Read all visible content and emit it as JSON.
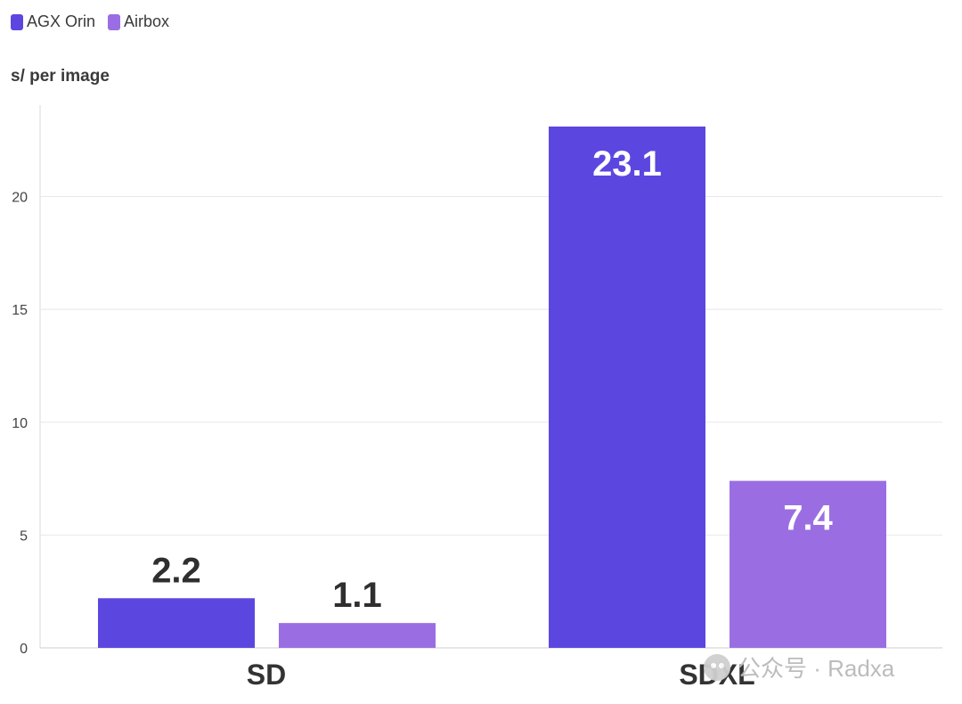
{
  "legend": [
    {
      "label": "AGX Orin",
      "color": "#5b47e0"
    },
    {
      "label": "Airbox",
      "color": "#9a6ee2"
    }
  ],
  "watermark": {
    "text": "公众号 · Radxa",
    "icon": "wechat-icon"
  },
  "chart_data": {
    "type": "bar",
    "title": "",
    "xlabel": "",
    "ylabel": "s/ per image",
    "categories": [
      "SD",
      "SDXL"
    ],
    "series": [
      {
        "name": "AGX Orin",
        "color": "#5b47e0",
        "values": [
          2.2,
          23.1
        ],
        "labels": [
          "2.2",
          "23.1"
        ]
      },
      {
        "name": "Airbox",
        "color": "#9a6ee2",
        "values": [
          1.1,
          7.4
        ],
        "labels": [
          "1.1",
          "7.4"
        ]
      }
    ],
    "ylim": [
      0,
      23.1
    ],
    "yticks": [
      0,
      5,
      10,
      15,
      20
    ],
    "grid": true,
    "legend_position": "top-left"
  }
}
